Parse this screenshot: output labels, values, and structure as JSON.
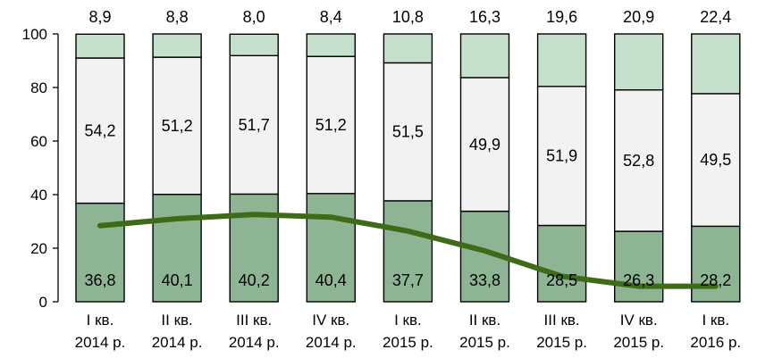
{
  "chart_data": {
    "type": "bar",
    "stacked": true,
    "title": "",
    "xlabel": "",
    "ylabel": "",
    "ylim": [
      0,
      100
    ],
    "yticks": [
      0,
      20,
      40,
      60,
      80,
      100
    ],
    "grid": false,
    "legend": "none",
    "categories": [
      [
        "I кв.",
        "2014 р."
      ],
      [
        "II кв.",
        "2014 р."
      ],
      [
        "III кв.",
        "2014 р."
      ],
      [
        "IV кв.",
        "2014 р."
      ],
      [
        "I кв.",
        "2015 р."
      ],
      [
        "II кв.",
        "2015 р."
      ],
      [
        "III кв.",
        "2015 р."
      ],
      [
        "IV кв.",
        "2015 р."
      ],
      [
        "I кв.",
        "2016 р."
      ]
    ],
    "series": [
      {
        "values": [
          36.8,
          40.1,
          40.2,
          40.4,
          37.7,
          33.8,
          28.5,
          26.3,
          28.2
        ],
        "labels": [
          "36,8",
          "40,1",
          "40,2",
          "40,4",
          "37,7",
          "33,8",
          "28,5",
          "26,3",
          "28,2"
        ],
        "color": "#8db594"
      },
      {
        "values": [
          54.2,
          51.2,
          51.7,
          51.2,
          51.5,
          49.9,
          51.9,
          52.8,
          49.5
        ],
        "labels": [
          "54,2",
          "51,2",
          "51,7",
          "51,2",
          "51,5",
          "49,9",
          "51,9",
          "52,8",
          "49,5"
        ],
        "color": "#f2f2f2"
      },
      {
        "values": [
          8.9,
          8.8,
          8.0,
          8.4,
          10.8,
          16.3,
          19.6,
          20.9,
          22.4
        ],
        "labels": [
          "8,9",
          "8,8",
          "8,0",
          "8,4",
          "10,8",
          "16,3",
          "19,6",
          "20,9",
          "22,4"
        ],
        "color": "#c5e0cc"
      }
    ],
    "line": {
      "values": [
        28.4,
        31.0,
        32.6,
        31.6,
        26.4,
        19.0,
        9.5,
        5.8,
        5.8
      ],
      "color": "#3d6b17"
    }
  }
}
